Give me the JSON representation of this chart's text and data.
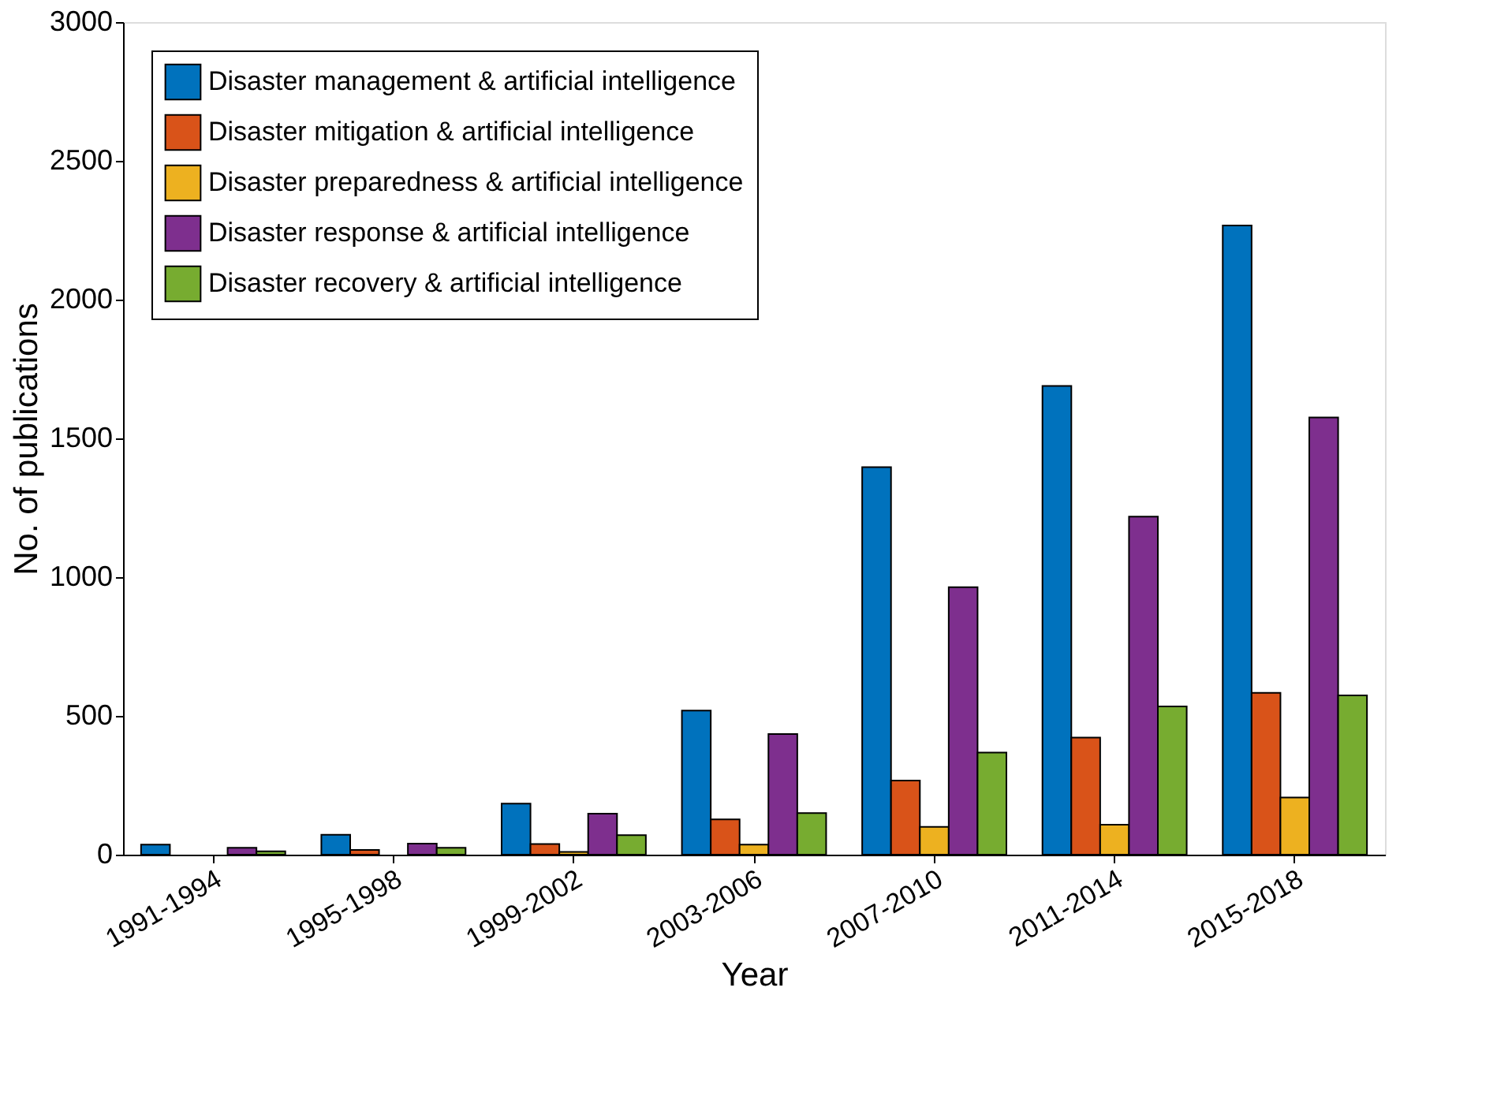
{
  "chart_data": {
    "type": "bar",
    "xlabel": "Year",
    "ylabel": "No. of publications",
    "categories": [
      "1991-1994",
      "1995-1998",
      "1999-2002",
      "2003-2006",
      "2007-2010",
      "2011-2014",
      "2015-2018"
    ],
    "series": [
      {
        "name": "Disaster management & artificial intelligence",
        "color": "#0072bd",
        "values": [
          36,
          72,
          184,
          519,
          1396,
          1689,
          2267
        ]
      },
      {
        "name": "Disaster mitigation & artificial intelligence",
        "color": "#d95319",
        "values": [
          null,
          17,
          38,
          127,
          267,
          422,
          583
        ]
      },
      {
        "name": "Disaster preparedness & artificial intelligence",
        "color": "#edb120",
        "values": [
          null,
          null,
          10,
          36,
          100,
          108,
          206
        ]
      },
      {
        "name": "Disaster response & artificial intelligence",
        "color": "#7e2f8e",
        "values": [
          25,
          40,
          148,
          435,
          964,
          1218,
          1575
        ]
      },
      {
        "name": "Disaster recovery & artificial intelligence",
        "color": "#77ac30",
        "values": [
          12,
          25,
          70,
          150,
          368,
          534,
          574
        ]
      }
    ],
    "ylim": [
      0,
      3000
    ],
    "yticks": [
      0,
      500,
      1000,
      1500,
      2000,
      2500,
      3000
    ],
    "grid": false,
    "legend": "top left"
  }
}
